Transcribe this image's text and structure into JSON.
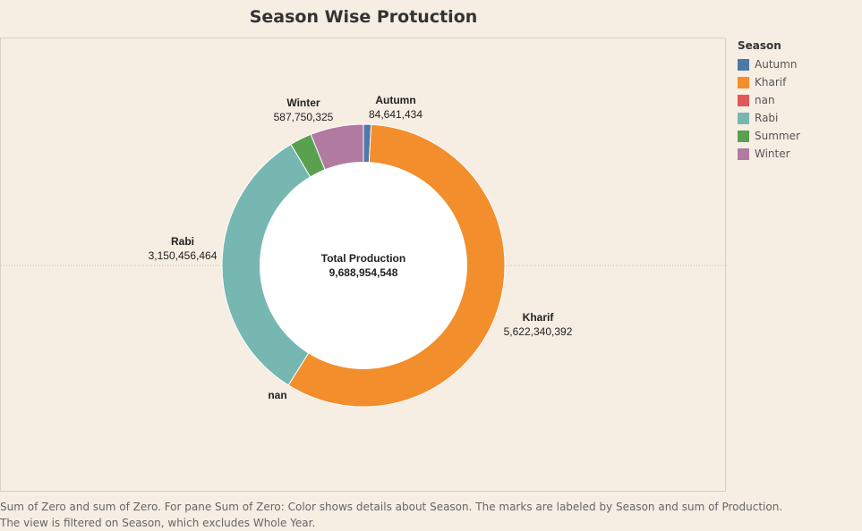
{
  "title": "Season Wise Protuction",
  "legend": {
    "title": "Season",
    "items": [
      {
        "label": "Autumn",
        "color": "#4e79a7"
      },
      {
        "label": "Kharif",
        "color": "#f28e2b"
      },
      {
        "label": "nan",
        "color": "#e15759"
      },
      {
        "label": "Rabi",
        "color": "#76b7b2"
      },
      {
        "label": "Summer",
        "color": "#59a14f"
      },
      {
        "label": "Winter",
        "color": "#b07aa1"
      }
    ]
  },
  "center": {
    "label": "Total Production",
    "value": "9,688,954,548"
  },
  "caption": {
    "line1": "Sum of Zero and sum of Zero.  For pane Sum of Zero:  Color shows details about Season.  The marks are labeled by Season and sum of Production.",
    "line2": "The view is filtered on Season, which excludes Whole Year."
  },
  "chart_data": {
    "type": "pie",
    "variant": "donut",
    "title": "Season Wise Protuction",
    "legend_title": "Season",
    "slices": [
      {
        "label": "Autumn",
        "value": 84641434,
        "display": "84,641,434",
        "color": "#4e79a7"
      },
      {
        "label": "Kharif",
        "value": 5622340392,
        "display": "5,622,340,392",
        "color": "#f28e2b"
      },
      {
        "label": "nan",
        "value": 0,
        "display": "",
        "color": "#e15759"
      },
      {
        "label": "Rabi",
        "value": 3150456464,
        "display": "3,150,456,464",
        "color": "#76b7b2"
      },
      {
        "label": "Summer",
        "value": 243766000,
        "display": "",
        "color": "#59a14f"
      },
      {
        "label": "Winter",
        "value": 587750325,
        "display": "587,750,325",
        "color": "#b07aa1"
      }
    ],
    "total_label": "Total Production",
    "total": 9688954548,
    "legend_position": "right"
  }
}
